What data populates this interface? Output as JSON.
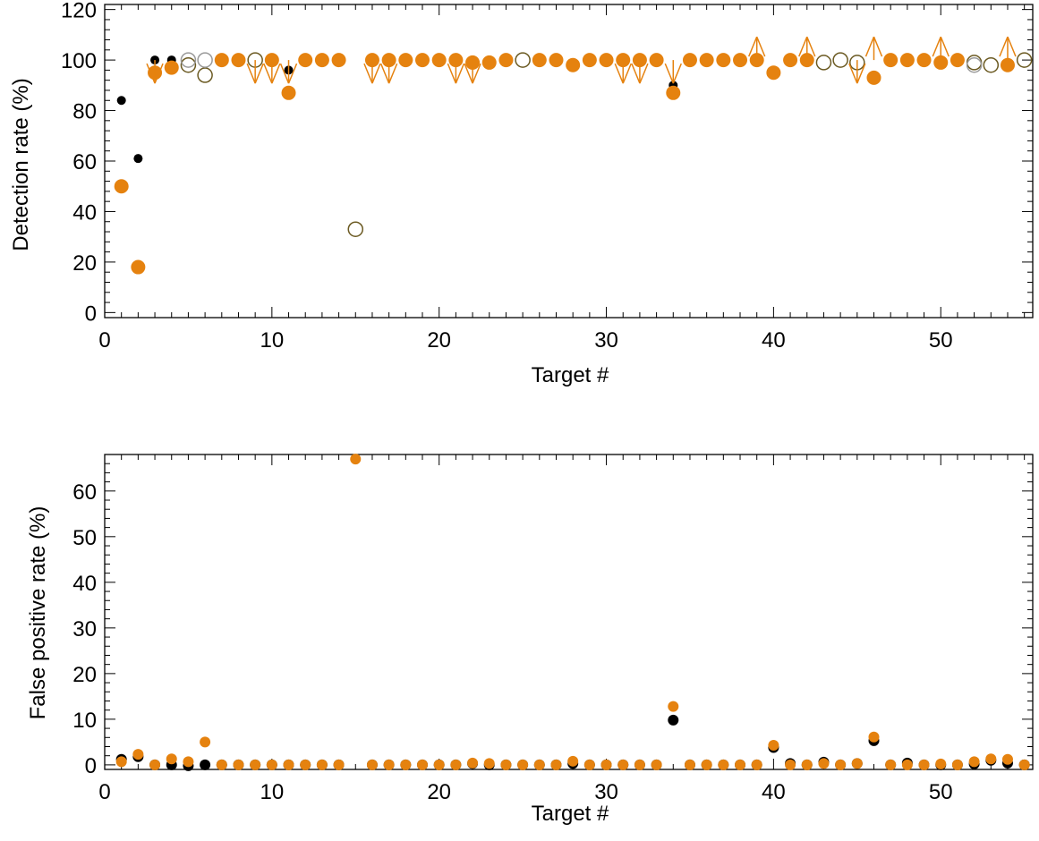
{
  "colors": {
    "orange": "#e5820f",
    "black": "#000000",
    "open_brown": "#6b5a22",
    "open_gray": "#9a9a9a"
  },
  "chart_data": [
    {
      "type": "scatter",
      "xlabel": "Target #",
      "ylabel": "Detection rate (%)",
      "xlim": [
        0,
        55.5
      ],
      "ylim": [
        -2,
        122
      ],
      "x_ticks": [
        0,
        10,
        20,
        30,
        40,
        50
      ],
      "y_ticks": [
        0,
        20,
        40,
        60,
        80,
        100,
        120
      ],
      "grid": false,
      "series": [
        {
          "marker": "small-filled-black",
          "points": [
            [
              1,
              84
            ],
            [
              2,
              61
            ],
            [
              3,
              100
            ],
            [
              4,
              100
            ],
            [
              11,
              96
            ],
            [
              34,
              90
            ]
          ]
        },
        {
          "marker": "large-filled-orange",
          "points": [
            [
              1,
              50
            ],
            [
              2,
              18
            ],
            [
              3,
              95
            ],
            [
              4,
              97
            ],
            [
              7,
              100
            ],
            [
              8,
              100
            ],
            [
              10,
              100
            ],
            [
              11,
              87
            ],
            [
              12,
              100
            ],
            [
              13,
              100
            ],
            [
              14,
              100
            ],
            [
              16,
              100
            ],
            [
              17,
              100
            ],
            [
              18,
              100
            ],
            [
              19,
              100
            ],
            [
              20,
              100
            ],
            [
              21,
              100
            ],
            [
              22,
              99
            ],
            [
              23,
              99
            ],
            [
              24,
              100
            ],
            [
              26,
              100
            ],
            [
              27,
              100
            ],
            [
              28,
              98
            ],
            [
              29,
              100
            ],
            [
              30,
              100
            ],
            [
              31,
              100
            ],
            [
              32,
              100
            ],
            [
              33,
              100
            ],
            [
              34,
              87
            ],
            [
              35,
              100
            ],
            [
              36,
              100
            ],
            [
              37,
              100
            ],
            [
              38,
              100
            ],
            [
              39,
              100
            ],
            [
              40,
              95
            ],
            [
              41,
              100
            ],
            [
              42,
              100
            ],
            [
              46,
              93
            ],
            [
              47,
              100
            ],
            [
              48,
              100
            ],
            [
              49,
              100
            ],
            [
              50,
              99
            ],
            [
              51,
              100
            ],
            [
              54,
              98
            ]
          ]
        },
        {
          "marker": "open-circle",
          "points": [
            [
              5,
              98,
              "brown"
            ],
            [
              5,
              100,
              "gray"
            ],
            [
              6,
              94,
              "brown"
            ],
            [
              6,
              100,
              "gray"
            ],
            [
              9,
              100,
              "brown"
            ],
            [
              15,
              33,
              "brown"
            ],
            [
              25,
              100,
              "brown"
            ],
            [
              43,
              99,
              "brown"
            ],
            [
              44,
              100,
              "brown"
            ],
            [
              45,
              99,
              "brown"
            ],
            [
              52,
              99,
              "brown"
            ],
            [
              52,
              98,
              "gray"
            ],
            [
              53,
              98,
              "brown"
            ],
            [
              55,
              100,
              "brown"
            ]
          ]
        },
        {
          "marker": "upper-limit-arrow",
          "x": [
            3,
            9,
            10,
            11,
            16,
            17,
            21,
            22,
            31,
            32,
            34,
            45
          ]
        },
        {
          "marker": "lower-limit-arrow",
          "x": [
            39,
            42,
            46,
            50,
            54
          ]
        }
      ]
    },
    {
      "type": "scatter",
      "xlabel": "Target #",
      "ylabel": "False positive rate (%)",
      "xlim": [
        0,
        55.5
      ],
      "ylim": [
        -1,
        68
      ],
      "x_ticks": [
        0,
        10,
        20,
        30,
        40,
        50
      ],
      "y_ticks": [
        0,
        10,
        20,
        30,
        40,
        50,
        60
      ],
      "grid": false,
      "series": [
        {
          "marker": "filled-black",
          "points": [
            [
              1,
              1.2
            ],
            [
              2,
              1.8
            ],
            [
              3,
              0
            ],
            [
              4,
              0
            ],
            [
              5,
              -0.2
            ],
            [
              6,
              0
            ],
            [
              7,
              0
            ],
            [
              8,
              0
            ],
            [
              9,
              0
            ],
            [
              10,
              0
            ],
            [
              11,
              0
            ],
            [
              12,
              0
            ],
            [
              13,
              0
            ],
            [
              14,
              0
            ],
            [
              16,
              0
            ],
            [
              17,
              0
            ],
            [
              18,
              0
            ],
            [
              19,
              0
            ],
            [
              20,
              0
            ],
            [
              21,
              0
            ],
            [
              22,
              0.3
            ],
            [
              23,
              0
            ],
            [
              24,
              0
            ],
            [
              25,
              0
            ],
            [
              26,
              0
            ],
            [
              27,
              0
            ],
            [
              28,
              0.3
            ],
            [
              29,
              0
            ],
            [
              30,
              0
            ],
            [
              31,
              0
            ],
            [
              32,
              0
            ],
            [
              33,
              0
            ],
            [
              34,
              9.8
            ],
            [
              35,
              0
            ],
            [
              36,
              0
            ],
            [
              37,
              0
            ],
            [
              38,
              0
            ],
            [
              39,
              0
            ],
            [
              40,
              3.8
            ],
            [
              41,
              0.3
            ],
            [
              42,
              0
            ],
            [
              43,
              0.6
            ],
            [
              44,
              0
            ],
            [
              45,
              0.3
            ],
            [
              46,
              5.3
            ],
            [
              47,
              0
            ],
            [
              48,
              0.4
            ],
            [
              49,
              0
            ],
            [
              50,
              0
            ],
            [
              51,
              0
            ],
            [
              52,
              0.2
            ],
            [
              53,
              1
            ],
            [
              54,
              0.4
            ],
            [
              55,
              0
            ]
          ]
        },
        {
          "marker": "filled-orange",
          "points": [
            [
              1,
              0.7
            ],
            [
              2,
              2.3
            ],
            [
              3,
              0
            ],
            [
              4,
              1.3
            ],
            [
              5,
              0.7
            ],
            [
              6,
              5
            ],
            [
              7,
              0
            ],
            [
              8,
              0
            ],
            [
              9,
              0
            ],
            [
              10,
              0
            ],
            [
              11,
              0
            ],
            [
              12,
              0
            ],
            [
              13,
              0
            ],
            [
              14,
              0
            ],
            [
              15,
              67
            ],
            [
              16,
              0
            ],
            [
              17,
              0
            ],
            [
              18,
              0
            ],
            [
              19,
              0
            ],
            [
              20,
              0
            ],
            [
              21,
              0
            ],
            [
              22,
              0.4
            ],
            [
              23,
              0.3
            ],
            [
              24,
              0
            ],
            [
              25,
              0
            ],
            [
              26,
              0
            ],
            [
              27,
              0
            ],
            [
              28,
              0.8
            ],
            [
              29,
              0
            ],
            [
              30,
              0
            ],
            [
              31,
              0
            ],
            [
              32,
              0
            ],
            [
              33,
              0
            ],
            [
              34,
              12.8
            ],
            [
              35,
              0
            ],
            [
              36,
              0
            ],
            [
              37,
              0
            ],
            [
              38,
              0
            ],
            [
              39,
              0
            ],
            [
              40,
              4.3
            ],
            [
              41,
              0
            ],
            [
              42,
              0
            ],
            [
              43,
              0.3
            ],
            [
              44,
              0
            ],
            [
              45,
              0.3
            ],
            [
              46,
              6.1
            ],
            [
              47,
              0
            ],
            [
              48,
              0
            ],
            [
              49,
              0
            ],
            [
              50,
              0.2
            ],
            [
              51,
              0
            ],
            [
              52,
              0.7
            ],
            [
              53,
              1.3
            ],
            [
              54,
              1.2
            ],
            [
              55,
              0
            ]
          ]
        }
      ]
    }
  ]
}
